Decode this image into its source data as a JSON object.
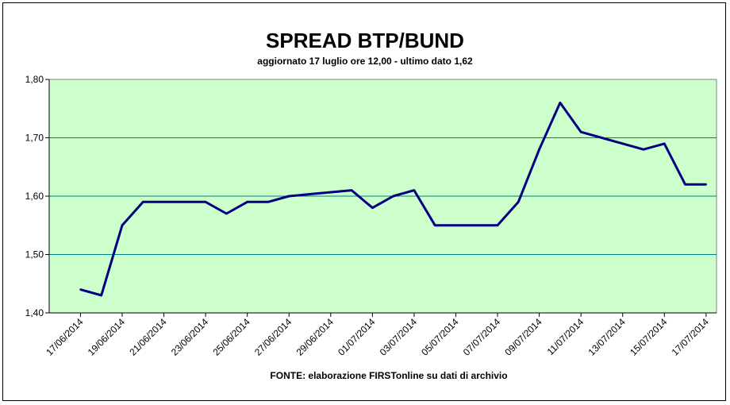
{
  "chart_data": {
    "type": "line",
    "title": "SPREAD BTP/BUND",
    "subtitle": "aggiornato 17 luglio ore 12,00 - ultimo dato 1,62",
    "source": "FONTE: elaborazione FIRSTonline su dati di archivio",
    "xlabel": "",
    "ylabel": "",
    "ylim": [
      1.4,
      1.8
    ],
    "yticks": [
      "1,80",
      "1,70",
      "1,60",
      "1,50",
      "1,40"
    ],
    "xticks": [
      "17/06/2014",
      "19/06/2014",
      "21/06/2014",
      "23/06/2014",
      "25/06/2014",
      "27/06/2014",
      "29/06/2014",
      "01/07/2014",
      "03/07/2014",
      "05/07/2014",
      "07/07/2014",
      "09/07/2014",
      "11/07/2014",
      "13/07/2014",
      "15/07/2014",
      "17/07/2014"
    ],
    "x": [
      "2014-06-17",
      "2014-06-18",
      "2014-06-19",
      "2014-06-20",
      "2014-06-23",
      "2014-06-24",
      "2014-06-25",
      "2014-06-26",
      "2014-06-27",
      "2014-06-30",
      "2014-07-01",
      "2014-07-02",
      "2014-07-03",
      "2014-07-04",
      "2014-07-07",
      "2014-07-08",
      "2014-07-09",
      "2014-07-10",
      "2014-07-11",
      "2014-07-14",
      "2014-07-15",
      "2014-07-16",
      "2014-07-17"
    ],
    "series": [
      {
        "values": [
          1.44,
          1.43,
          1.55,
          1.59,
          1.59,
          1.57,
          1.59,
          1.59,
          1.6,
          1.61,
          1.58,
          1.6,
          1.61,
          1.55,
          1.55,
          1.59,
          1.68,
          1.76,
          1.71,
          1.68,
          1.69,
          1.62,
          1.62
        ],
        "color": "#000080"
      }
    ],
    "plot_background": "#ccffcc",
    "gridlines": true,
    "legend": "none"
  }
}
